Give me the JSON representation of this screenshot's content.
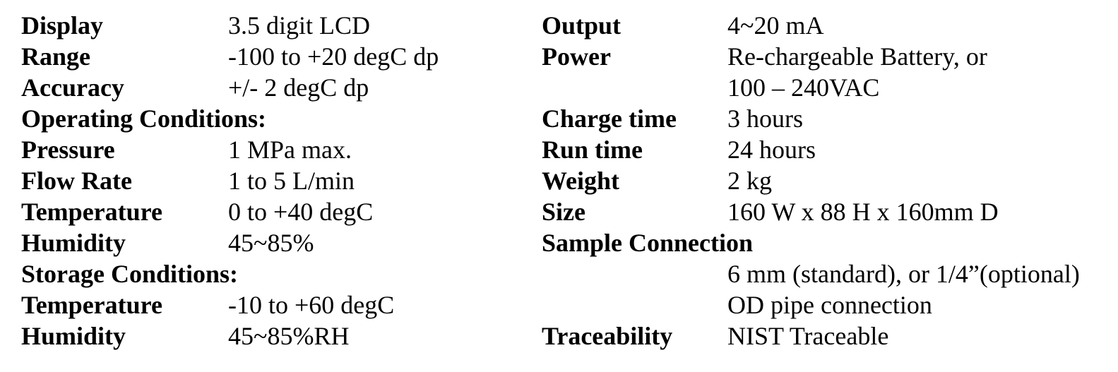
{
  "colors": {
    "text": "#000000",
    "background": "#ffffff"
  },
  "left": {
    "rows": [
      {
        "type": "pair",
        "label": "Display",
        "value": "3.5 digit LCD"
      },
      {
        "type": "pair",
        "label": "Range",
        "value": "-100 to +20 degC dp"
      },
      {
        "type": "pair",
        "label": "Accuracy",
        "value": "+/- 2 degC dp"
      },
      {
        "type": "section",
        "label": "Operating Conditions:",
        "value": ""
      },
      {
        "type": "pair",
        "label": "Pressure",
        "value": "1 MPa max."
      },
      {
        "type": "pair",
        "label": "Flow Rate",
        "value": "1 to 5 L/min"
      },
      {
        "type": "pair",
        "label": "Temperature",
        "value": "0 to +40 degC"
      },
      {
        "type": "pair",
        "label": "Humidity",
        "value": "45~85%"
      },
      {
        "type": "section",
        "label": "Storage Conditions:",
        "value": ""
      },
      {
        "type": "pair",
        "label": "Temperature",
        "value": "-10 to +60 degC"
      },
      {
        "type": "pair",
        "label": "Humidity",
        "value": "45~85%RH"
      }
    ]
  },
  "right": {
    "rows": [
      {
        "type": "pair",
        "label": "Output",
        "value": "4~20 mA"
      },
      {
        "type": "pair",
        "label": "Power",
        "value": "Re-chargeable Battery, or"
      },
      {
        "type": "continuation",
        "label": "",
        "value": "100 – 240VAC"
      },
      {
        "type": "pair",
        "label": "Charge time",
        "value": "3 hours"
      },
      {
        "type": "pair",
        "label": "Run time",
        "value": "24 hours"
      },
      {
        "type": "pair",
        "label": "Weight",
        "value": "2 kg"
      },
      {
        "type": "pair",
        "label": "Size",
        "value": "160 W x 88 H x 160mm D"
      },
      {
        "type": "section",
        "label": "Sample Connection",
        "value": ""
      },
      {
        "type": "continuation",
        "label": "",
        "value": "6 mm (standard), or 1/4”(optional)"
      },
      {
        "type": "continuation",
        "label": "",
        "value": "OD pipe connection"
      },
      {
        "type": "pair",
        "label": "Traceability",
        "value": "NIST Traceable"
      }
    ]
  }
}
